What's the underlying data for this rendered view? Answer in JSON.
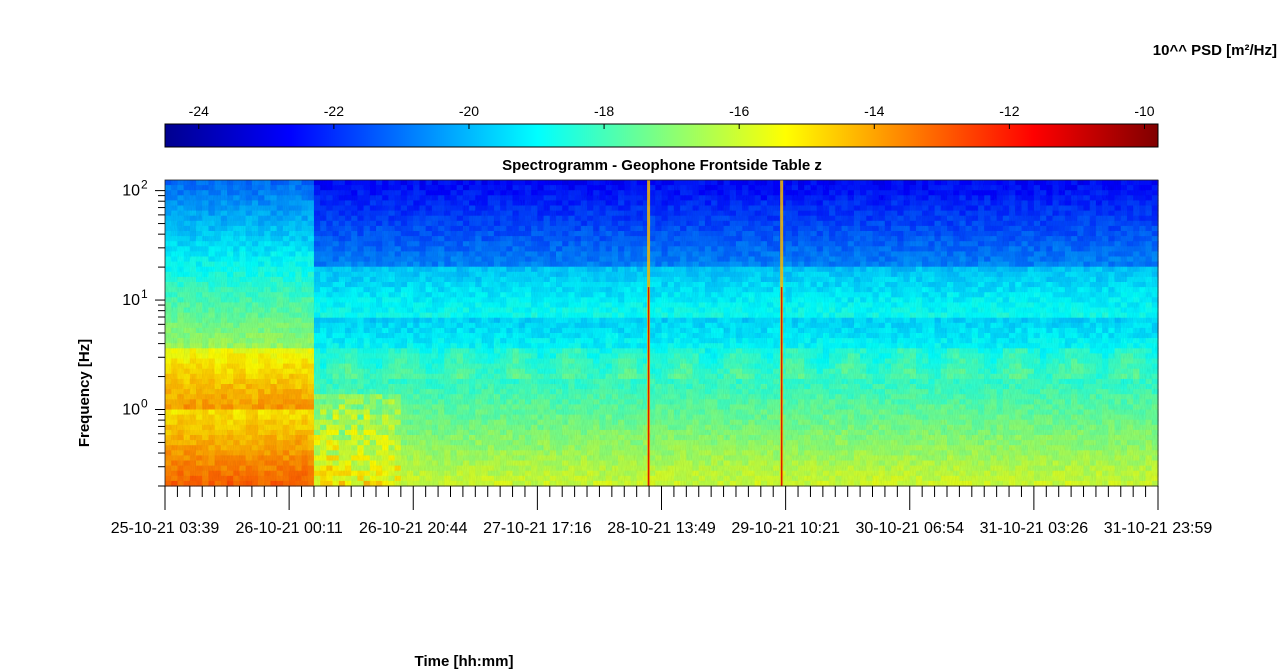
{
  "chart_data": {
    "type": "heatmap",
    "title": "Spectrogramm - Geophone Frontside Table z",
    "xlabel": "Time [hh:mm]",
    "ylabel": "Frequency [Hz]",
    "y_scale": "log",
    "ylim": [
      0.2,
      125
    ],
    "y_ticks": [
      {
        "value": 1,
        "base": "10",
        "exp": "0"
      },
      {
        "value": 10,
        "base": "10",
        "exp": "1"
      },
      {
        "value": 100,
        "base": "10",
        "exp": "2"
      }
    ],
    "x_tick_labels": [
      "25-10-21 03:39",
      "26-10-21 00:11",
      "26-10-21 20:44",
      "27-10-21 17:16",
      "28-10-21 13:49",
      "29-10-21 10:21",
      "30-10-21 06:54",
      "31-10-21 03:26",
      "31-10-21 23:59"
    ],
    "colorbar": {
      "label": "10^^ PSD [m²/Hz]",
      "range": [
        -24.5,
        -9.8
      ],
      "ticks": [
        -24,
        -22,
        -20,
        -18,
        -16,
        -14,
        -12,
        -10
      ],
      "colormap": "jet"
    },
    "features": [
      {
        "description_kind": "time_segment",
        "start_fraction": 0.0,
        "end_fraction": 0.15,
        "level": "high"
      },
      {
        "description_kind": "vertical_spike",
        "at_fraction": 0.487
      },
      {
        "description_kind": "vertical_spike",
        "at_fraction": 0.621
      }
    ]
  }
}
